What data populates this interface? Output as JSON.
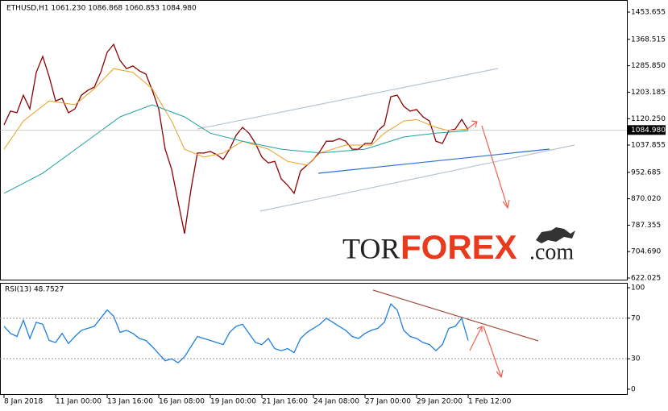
{
  "chart_data": [
    {
      "type": "line",
      "title": "ETHUSD,H1  1061.230 1086.868 1060.853 1084.980",
      "watermark": [
        "TOR",
        "FOREX",
        ".com"
      ],
      "xlim": [
        -0.625,
        96.625
      ],
      "ylim": [
        614.5,
        1491.5
      ],
      "yticks": [
        1453.655,
        1368.515,
        {
          "value": 1285.85,
          "label": "1285.850"
        },
        1203.185,
        {
          "value": 1120.25,
          "label": "1120.250"
        },
        1037.855,
        952.685,
        {
          "value": 870.02,
          "label": "870.020"
        },
        787.355,
        {
          "value": 704.69,
          "label": "704.690"
        },
        622.025
      ],
      "last_price": {
        "value": 1084.98,
        "label": "1084.980"
      },
      "series": [
        {
          "color": "#8b0000",
          "values": [
            1101,
            1144,
            1139,
            1194,
            1151,
            1265,
            1315,
            1252,
            1176,
            1184,
            1139,
            1151,
            1194,
            1209,
            1219,
            1265,
            1328,
            1353,
            1302,
            1277,
            1285,
            1270,
            1260,
            1209,
            1151,
            1025,
            962,
            861,
            761,
            899,
            1013,
            1013,
            1018,
            1008,
            993,
            1025,
            1068,
            1093,
            1075,
            1043,
            1000,
            982,
            987,
            932,
            912,
            887,
            957,
            975,
            993,
            1018,
            1050,
            1050,
            1058,
            1050,
            1025,
            1025,
            1043,
            1043,
            1083,
            1101,
            1189,
            1194,
            1159,
            1144,
            1149,
            1126,
            1113,
            1050,
            1043,
            1083,
            1088,
            1118,
            1085
          ]
        },
        {
          "color": "#e8a020",
          "x": [
            0,
            3,
            7,
            11,
            14,
            17,
            20,
            23,
            26,
            28,
            31,
            34,
            37,
            41,
            44,
            47,
            49,
            53,
            57,
            59,
            62,
            64,
            67,
            69,
            72
          ],
          "values": [
            1025,
            1113,
            1176,
            1164,
            1214,
            1277,
            1265,
            1214,
            1113,
            1025,
            1000,
            1013,
            1050,
            1025,
            987,
            975,
            1013,
            1038,
            1038,
            1075,
            1113,
            1118,
            1093,
            1083,
            1088
          ]
        },
        {
          "color": "#20a0a0",
          "x": [
            0,
            6,
            12,
            18,
            23,
            28,
            32,
            37,
            43,
            49,
            56,
            62,
            67,
            72
          ],
          "values": [
            887,
            950,
            1038,
            1126,
            1164,
            1126,
            1075,
            1050,
            1025,
            1013,
            1025,
            1063,
            1075,
            1083
          ]
        }
      ]
    },
    {
      "type": "line",
      "title": "RSI(13) 48.7527",
      "xlim": [
        -0.625,
        96.625
      ],
      "ylim": [
        -5.6,
        104.8
      ],
      "yticks": [
        100,
        70,
        30,
        0
      ],
      "grid_levels": [
        70,
        30
      ],
      "xticks": [
        {
          "value": 0,
          "label": "8 Jan 2018"
        },
        {
          "value": 8,
          "label": "11 Jan 00:00"
        },
        {
          "value": 16,
          "label": "13 Jan 16:00"
        },
        {
          "value": 24,
          "label": "16 Jan 08:00"
        },
        {
          "value": 32,
          "label": "19 Jan 00:00"
        },
        {
          "value": 40,
          "label": "21 Jan 16:00"
        },
        {
          "value": 48,
          "label": "24 Jan 08:00"
        },
        {
          "value": 56,
          "label": "27 Jan 00:00"
        },
        {
          "value": 64,
          "label": "29 Jan 20:00"
        },
        {
          "value": 72,
          "label": "1 Feb 12:00"
        }
      ],
      "series": [
        {
          "color": "#1e7fe0",
          "values": [
            62,
            55,
            52,
            68,
            50,
            66,
            64,
            48,
            46,
            55,
            45,
            52,
            58,
            60,
            62,
            70,
            78,
            72,
            56,
            58,
            55,
            50,
            48,
            42,
            35,
            28,
            30,
            26,
            32,
            42,
            52,
            50,
            48,
            46,
            44,
            56,
            62,
            64,
            55,
            46,
            44,
            50,
            40,
            38,
            40,
            36,
            50,
            56,
            60,
            64,
            70,
            66,
            62,
            58,
            52,
            50,
            55,
            58,
            60,
            66,
            84,
            78,
            58,
            52,
            50,
            46,
            44,
            38,
            44,
            60,
            62,
            70,
            48
          ]
        }
      ]
    }
  ]
}
